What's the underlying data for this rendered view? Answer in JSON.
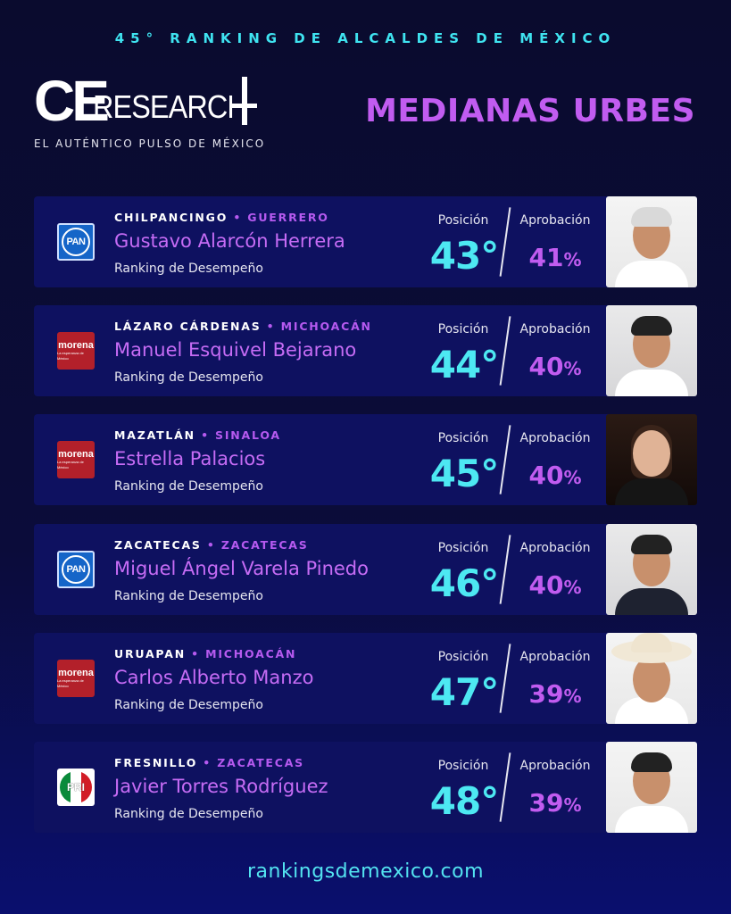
{
  "header": {
    "banner": "45° RANKING DE ALCALDES DE MÉXICO",
    "logo_ce": "CE",
    "logo_research": "RESEARCH",
    "tagline": "EL AUTÉNTICO PULSO DE MÉXICO",
    "section_title": "MEDIANAS URBES"
  },
  "labels": {
    "position": "Posición",
    "approval": "Aprobación",
    "subtitle": "Ranking de Desempeño",
    "separator": "•"
  },
  "mayors": [
    {
      "city": "CHILPANCINGO",
      "state": "GUERRERO",
      "name": "Gustavo Alarcón Herrera",
      "party": "PAN",
      "position": "43°",
      "approval": "41",
      "approval_unit": "%"
    },
    {
      "city": "LÁZARO CÁRDENAS",
      "state": "MICHOACÁN",
      "name": "Manuel Esquivel Bejarano",
      "party": "morena",
      "position": "44°",
      "approval": "40",
      "approval_unit": "%"
    },
    {
      "city": "MAZATLÁN",
      "state": "SINALOA",
      "name": "Estrella Palacios",
      "party": "morena",
      "position": "45°",
      "approval": "40",
      "approval_unit": "%"
    },
    {
      "city": "ZACATECAS",
      "state": "ZACATECAS",
      "name": "Miguel Ángel Varela Pinedo",
      "party": "PAN",
      "position": "46°",
      "approval": "40",
      "approval_unit": "%"
    },
    {
      "city": "URUAPAN",
      "state": "MICHOACÁN",
      "name": "Carlos Alberto Manzo",
      "party": "morena",
      "position": "47°",
      "approval": "39",
      "approval_unit": "%"
    },
    {
      "city": "FRESNILLO",
      "state": "ZACATECAS",
      "name": "Javier Torres Rodríguez",
      "party": "PRI",
      "position": "48°",
      "approval": "39",
      "approval_unit": "%"
    }
  ],
  "party_logo_text": {
    "pan": "PAN",
    "morena": "morena",
    "morena_sub": "La esperanza de México",
    "pri": "PRI"
  },
  "colors": {
    "cyan_accent": "#4de8f2",
    "purple_accent": "#c15cf0",
    "card_bg": "#0e1160"
  },
  "footer": {
    "url": "rankingsdemexico.com"
  }
}
